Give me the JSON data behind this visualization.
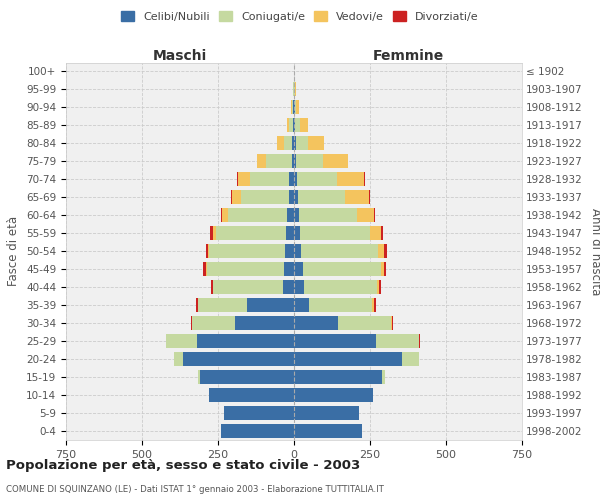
{
  "age_groups": [
    "0-4",
    "5-9",
    "10-14",
    "15-19",
    "20-24",
    "25-29",
    "30-34",
    "35-39",
    "40-44",
    "45-49",
    "50-54",
    "55-59",
    "60-64",
    "65-69",
    "70-74",
    "75-79",
    "80-84",
    "85-89",
    "90-94",
    "95-99",
    "100+"
  ],
  "birth_years": [
    "1998-2002",
    "1993-1997",
    "1988-1992",
    "1983-1987",
    "1978-1982",
    "1973-1977",
    "1968-1972",
    "1963-1967",
    "1958-1962",
    "1953-1957",
    "1948-1952",
    "1943-1947",
    "1938-1942",
    "1933-1937",
    "1928-1932",
    "1923-1927",
    "1918-1922",
    "1913-1917",
    "1908-1912",
    "1903-1907",
    "≤ 1902"
  ],
  "male": {
    "celibi": [
      240,
      230,
      280,
      310,
      365,
      320,
      195,
      155,
      35,
      32,
      28,
      25,
      22,
      18,
      15,
      8,
      5,
      3,
      2,
      1,
      0
    ],
    "coniugati": [
      0,
      0,
      0,
      5,
      30,
      100,
      140,
      160,
      230,
      255,
      250,
      230,
      195,
      155,
      130,
      85,
      28,
      12,
      5,
      1,
      0
    ],
    "vedovi": [
      0,
      0,
      0,
      0,
      0,
      0,
      1,
      2,
      2,
      3,
      5,
      12,
      20,
      30,
      40,
      30,
      22,
      8,
      3,
      1,
      0
    ],
    "divorziati": [
      0,
      0,
      0,
      0,
      1,
      2,
      3,
      5,
      7,
      8,
      8,
      8,
      4,
      4,
      3,
      0,
      0,
      0,
      0,
      0,
      0
    ]
  },
  "female": {
    "nubili": [
      225,
      215,
      260,
      290,
      355,
      270,
      145,
      48,
      32,
      28,
      22,
      20,
      18,
      12,
      10,
      7,
      5,
      4,
      2,
      1,
      0
    ],
    "coniugate": [
      0,
      0,
      0,
      10,
      55,
      140,
      175,
      210,
      240,
      258,
      255,
      230,
      190,
      155,
      130,
      90,
      40,
      16,
      6,
      2,
      0
    ],
    "vedove": [
      0,
      0,
      0,
      0,
      0,
      1,
      2,
      4,
      6,
      10,
      20,
      35,
      55,
      80,
      90,
      80,
      55,
      25,
      8,
      2,
      0
    ],
    "divorziate": [
      0,
      0,
      0,
      0,
      1,
      3,
      5,
      7,
      7,
      7,
      8,
      8,
      5,
      4,
      2,
      1,
      0,
      0,
      0,
      0,
      0
    ]
  },
  "colors": {
    "celibi": "#3a6ea5",
    "coniugati": "#c5d9a0",
    "vedovi": "#f4c45e",
    "divorziati": "#cc2222"
  },
  "title": "Popolazione per età, sesso e stato civile - 2003",
  "subtitle": "COMUNE DI SQUINZANO (LE) - Dati ISTAT 1° gennaio 2003 - Elaborazione TUTTITALIA.IT",
  "xlabel_left": "Maschi",
  "xlabel_right": "Femmine",
  "ylabel_left": "Fasce di età",
  "ylabel_right": "Anni di nascita",
  "legend_labels": [
    "Celibi/Nubili",
    "Coniugati/e",
    "Vedovi/e",
    "Divorziati/e"
  ],
  "xlim": 750,
  "background_color": "#ffffff",
  "grid_color": "#cccccc"
}
